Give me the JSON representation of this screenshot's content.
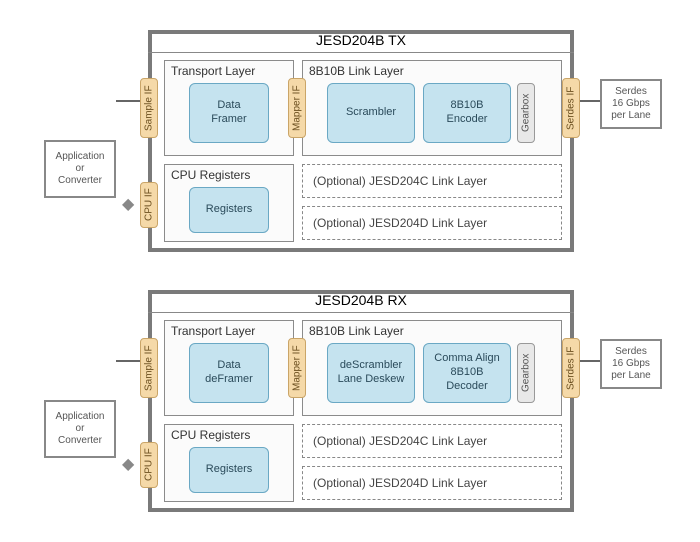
{
  "colors": {
    "frame_border": "#7a7a7a",
    "blue_fill": "#c5e3ef",
    "blue_border": "#6aa8c4",
    "tan_fill": "#f5d9a8",
    "tan_border": "#caa568",
    "gearbox_fill": "#e8e8e8",
    "gearbox_border": "#999999"
  },
  "tx": {
    "title": "JESD204B TX",
    "transport_label": "Transport Layer",
    "link_label": "8B10B Link Layer",
    "cpu_label": "CPU Registers",
    "data_framer": "Data\nFramer",
    "scrambler": "Scrambler",
    "encoder": "8B10B\nEncoder",
    "registers": "Registers",
    "sample_if": "Sample IF",
    "mapper_if": "Mapper IF",
    "gearbox": "Gearbox",
    "serdes_if": "Serdes IF",
    "cpu_if": "CPU IF",
    "opt_c": "(Optional) JESD204C Link Layer",
    "opt_d": "(Optional) JESD204D Link Layer",
    "left_label": "Application\nor\nConverter",
    "right_label": "Serdes\n16 Gbps\nper Lane"
  },
  "rx": {
    "title": "JESD204B RX",
    "transport_label": "Transport Layer",
    "link_label": "8B10B Link Layer",
    "cpu_label": "CPU Registers",
    "data_framer": "Data\ndeFramer",
    "scrambler": "deScrambler\nLane Deskew",
    "encoder": "Comma Align\n8B10B\nDecoder",
    "registers": "Registers",
    "sample_if": "Sample IF",
    "mapper_if": "Mapper IF",
    "gearbox": "Gearbox",
    "serdes_if": "Serdes IF",
    "cpu_if": "CPU IF",
    "opt_c": "(Optional) JESD204C Link Layer",
    "opt_d": "(Optional) JESD204D Link Layer",
    "left_label": "Application\nor\nConverter",
    "right_label": "Serdes\n16 Gbps\nper Lane"
  }
}
